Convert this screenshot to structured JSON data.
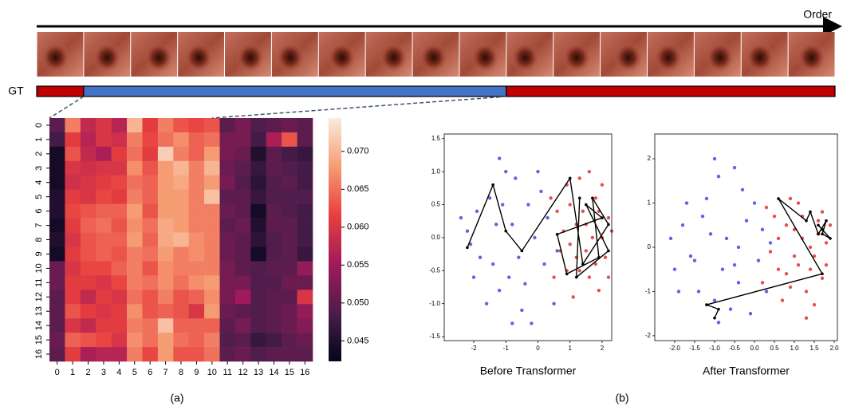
{
  "sequence": {
    "order_label": "Order",
    "gt_label": "GT",
    "gt_segments": [
      {
        "color": "#c00000",
        "start": 0,
        "end": 1
      },
      {
        "color": "#4472c4",
        "start": 1,
        "end": 10
      },
      {
        "color": "#c00000",
        "start": 10,
        "end": 17
      }
    ]
  },
  "chart_data": [
    {
      "type": "heatmap",
      "categories": [
        0,
        1,
        2,
        3,
        4,
        5,
        6,
        7,
        8,
        9,
        10,
        11,
        12,
        13,
        14,
        15,
        16
      ],
      "rows": [
        0,
        1,
        2,
        3,
        4,
        5,
        6,
        7,
        8,
        9,
        10,
        11,
        12,
        13,
        14,
        15,
        16
      ],
      "values": [
        [
          0.05,
          0.066,
          0.058,
          0.06,
          0.057,
          0.07,
          0.061,
          0.066,
          0.063,
          0.062,
          0.063,
          0.05,
          0.052,
          0.049,
          0.05,
          0.051,
          0.05
        ],
        [
          0.048,
          0.061,
          0.057,
          0.06,
          0.059,
          0.066,
          0.062,
          0.065,
          0.067,
          0.064,
          0.065,
          0.052,
          0.052,
          0.048,
          0.056,
          0.063,
          0.05
        ],
        [
          0.044,
          0.063,
          0.058,
          0.056,
          0.061,
          0.065,
          0.061,
          0.072,
          0.066,
          0.064,
          0.068,
          0.052,
          0.051,
          0.045,
          0.05,
          0.048,
          0.047
        ],
        [
          0.044,
          0.06,
          0.059,
          0.06,
          0.06,
          0.067,
          0.063,
          0.068,
          0.07,
          0.066,
          0.07,
          0.051,
          0.05,
          0.047,
          0.05,
          0.049,
          0.048
        ],
        [
          0.044,
          0.059,
          0.06,
          0.061,
          0.062,
          0.065,
          0.064,
          0.068,
          0.069,
          0.066,
          0.068,
          0.052,
          0.049,
          0.046,
          0.049,
          0.05,
          0.048
        ],
        [
          0.045,
          0.061,
          0.06,
          0.062,
          0.061,
          0.066,
          0.064,
          0.068,
          0.068,
          0.066,
          0.071,
          0.05,
          0.05,
          0.047,
          0.049,
          0.049,
          0.049
        ],
        [
          0.045,
          0.062,
          0.063,
          0.064,
          0.064,
          0.068,
          0.063,
          0.068,
          0.068,
          0.066,
          0.066,
          0.051,
          0.05,
          0.044,
          0.05,
          0.049,
          0.048
        ],
        [
          0.044,
          0.061,
          0.064,
          0.065,
          0.063,
          0.067,
          0.065,
          0.069,
          0.068,
          0.066,
          0.066,
          0.05,
          0.051,
          0.045,
          0.05,
          0.05,
          0.048
        ],
        [
          0.045,
          0.06,
          0.063,
          0.064,
          0.064,
          0.068,
          0.064,
          0.069,
          0.07,
          0.067,
          0.066,
          0.051,
          0.05,
          0.046,
          0.049,
          0.05,
          0.048
        ],
        [
          0.044,
          0.061,
          0.063,
          0.064,
          0.063,
          0.066,
          0.065,
          0.068,
          0.066,
          0.067,
          0.066,
          0.051,
          0.05,
          0.044,
          0.049,
          0.05,
          0.047
        ],
        [
          0.051,
          0.06,
          0.062,
          0.062,
          0.064,
          0.066,
          0.063,
          0.067,
          0.066,
          0.066,
          0.066,
          0.052,
          0.05,
          0.049,
          0.05,
          0.05,
          0.054
        ],
        [
          0.051,
          0.061,
          0.061,
          0.06,
          0.062,
          0.066,
          0.065,
          0.067,
          0.065,
          0.067,
          0.068,
          0.052,
          0.052,
          0.049,
          0.049,
          0.051,
          0.051
        ],
        [
          0.05,
          0.061,
          0.058,
          0.061,
          0.06,
          0.065,
          0.063,
          0.066,
          0.063,
          0.064,
          0.067,
          0.052,
          0.055,
          0.049,
          0.05,
          0.05,
          0.06
        ],
        [
          0.05,
          0.063,
          0.061,
          0.06,
          0.061,
          0.067,
          0.063,
          0.064,
          0.063,
          0.06,
          0.068,
          0.051,
          0.05,
          0.049,
          0.05,
          0.051,
          0.054
        ],
        [
          0.05,
          0.06,
          0.058,
          0.061,
          0.061,
          0.066,
          0.065,
          0.071,
          0.064,
          0.064,
          0.064,
          0.05,
          0.052,
          0.049,
          0.05,
          0.051,
          0.053
        ],
        [
          0.051,
          0.064,
          0.063,
          0.062,
          0.06,
          0.067,
          0.065,
          0.068,
          0.065,
          0.064,
          0.066,
          0.049,
          0.05,
          0.047,
          0.048,
          0.05,
          0.051
        ],
        [
          0.05,
          0.061,
          0.056,
          0.057,
          0.057,
          0.066,
          0.062,
          0.068,
          0.063,
          0.063,
          0.065,
          0.05,
          0.051,
          0.049,
          0.05,
          0.05,
          0.05
        ]
      ],
      "colormap": [
        "#03051a",
        "#4c1d4b",
        "#a11a5b",
        "#e83f3f",
        "#f69c73",
        "#faebdd"
      ],
      "clim": [
        0.0423,
        0.0744
      ],
      "cticks": [
        0.045,
        {
          "value": 0.05,
          "label": "0.050"
        },
        0.055,
        {
          "value": 0.06,
          "label": "0.060"
        },
        0.065,
        {
          "value": 0.07,
          "label": "0.070"
        }
      ]
    },
    {
      "type": "scatter",
      "title": "Before Transformer",
      "xlim": [
        -2.92,
        2.3
      ],
      "ylim": [
        -1.56,
        1.57
      ],
      "xticks": [
        -2,
        -1,
        0,
        1,
        2
      ],
      "yticks": [
        -1.5,
        {
          "value": -1,
          "label": "-1.0"
        },
        -0.5,
        {
          "value": 0,
          "label": "0.0"
        },
        0.5,
        {
          "value": 1,
          "label": "1.0"
        },
        1.5
      ],
      "series": [
        {
          "color": "#3b3be0",
          "x": [
            -2.2,
            -1.8,
            -1.5,
            -1.2,
            -0.8,
            -0.5,
            -1.0,
            -2.0,
            -0.3,
            0.2,
            -1.6,
            -0.6,
            -1.3,
            0.0,
            -0.9,
            -2.4,
            -0.4,
            0.3,
            -1.1,
            -0.7,
            -1.9,
            0.5,
            -0.2,
            -1.4,
            0.1,
            -0.8,
            -2.1,
            -0.1,
            0.6,
            -1.2
          ],
          "y": [
            0.1,
            -0.3,
            0.6,
            -0.8,
            0.2,
            -1.1,
            1.0,
            -0.6,
            0.5,
            -0.4,
            -1.0,
            -0.3,
            0.2,
            1.0,
            -0.6,
            0.3,
            -0.7,
            0.3,
            0.5,
            0.9,
            0.4,
            -1.0,
            -1.3,
            -0.4,
            0.7,
            -1.3,
            -0.1,
            0.0,
            -0.2,
            1.2
          ]
        },
        {
          "color": "#e02424",
          "x": [
            1.0,
            1.5,
            2.0,
            1.8,
            1.2,
            2.2,
            0.8,
            1.6,
            1.3,
            2.1,
            0.6,
            1.9,
            1.1,
            1.7,
            0.9,
            2.3,
            1.4,
            0.7,
            1.5,
            2.0,
            1.2,
            0.4,
            1.8,
            1.0,
            2.2,
            1.6,
            0.5,
            1.3,
            1.9,
            0.9
          ],
          "y": [
            0.5,
            0.2,
            0.0,
            0.6,
            -0.3,
            0.3,
            0.1,
            -0.6,
            0.9,
            -0.3,
            0.4,
            -0.8,
            -0.9,
            0.0,
            -0.5,
            0.1,
            0.4,
            -0.2,
            -0.2,
            0.8,
            0.2,
            0.6,
            -0.4,
            -0.1,
            -0.6,
            1.0,
            -0.6,
            -0.5,
            0.4,
            0.8
          ]
        }
      ],
      "path": {
        "color": "#000000",
        "x": [
          -2.2,
          -1.4,
          -1.0,
          -0.5,
          1.0,
          1.4,
          2.2,
          1.7,
          1.9,
          0.9,
          0.6,
          2.0,
          1.5,
          2.2,
          1.2,
          1.3
        ],
        "y": [
          -0.15,
          0.8,
          0.1,
          -0.2,
          0.9,
          -0.4,
          0.2,
          0.6,
          -0.3,
          -0.55,
          0.05,
          0.3,
          0.5,
          -0.2,
          -0.6,
          0.6
        ]
      }
    },
    {
      "type": "scatter",
      "title": "After Transformer",
      "xlim": [
        -2.5,
        2.08
      ],
      "ylim": [
        -2.11,
        2.56
      ],
      "xticks": [
        {
          "value": -2,
          "label": "-2.0"
        },
        -1.5,
        {
          "value": -1,
          "label": "-1.0"
        },
        -0.5,
        {
          "value": 0,
          "label": "0.0"
        },
        0.5,
        {
          "value": 1,
          "label": "1.0"
        },
        1.5,
        {
          "value": 2,
          "label": "2.0"
        }
      ],
      "yticks": [
        -2,
        -1,
        0,
        1,
        2
      ],
      "series": [
        {
          "color": "#3b3be0",
          "x": [
            -1.8,
            -1.5,
            -1.2,
            -1.0,
            -0.7,
            -0.4,
            -0.9,
            -2.0,
            -0.2,
            0.1,
            -1.4,
            -0.5,
            -1.1,
            -0.3,
            -0.8,
            -2.1,
            -0.6,
            0.2,
            -1.3,
            -0.5,
            -1.7,
            0.3,
            -0.1,
            -1.6,
            0.0,
            -0.9,
            -1.9,
            -0.4,
            0.4,
            -1.0
          ],
          "y": [
            0.5,
            -0.3,
            1.1,
            -1.2,
            0.2,
            -0.8,
            1.6,
            -0.5,
            0.6,
            -0.3,
            -1.0,
            -0.4,
            0.3,
            1.3,
            -0.5,
            0.2,
            -1.4,
            0.4,
            0.7,
            1.8,
            1.0,
            -1.0,
            -1.5,
            -0.2,
            1.0,
            -1.7,
            -1.0,
            0.0,
            0.1,
            2.0
          ]
        },
        {
          "color": "#e02424",
          "x": [
            0.8,
            1.2,
            1.6,
            1.4,
            1.0,
            1.8,
            0.6,
            1.3,
            1.1,
            1.7,
            0.5,
            1.5,
            0.9,
            1.6,
            0.7,
            1.9,
            1.2,
            0.4,
            1.4,
            1.8,
            1.0,
            0.3,
            1.5,
            0.8,
            1.3,
            0.9,
            0.6,
            1.7,
            1.1,
            0.2
          ],
          "y": [
            0.5,
            0.2,
            0.6,
            -0.5,
            -0.2,
            0.1,
            -0.5,
            -1.0,
            1.0,
            -0.7,
            0.7,
            -1.3,
            -0.9,
            0.3,
            -1.2,
            0.5,
            0.7,
            -0.1,
            0.0,
            -0.4,
            0.4,
            0.9,
            -0.2,
            -0.6,
            -1.6,
            1.1,
            0.2,
            0.8,
            -0.4,
            -0.8
          ]
        }
      ],
      "path": {
        "color": "#000000",
        "x": [
          -1.0,
          -0.9,
          -1.2,
          1.7,
          0.6,
          1.3,
          1.4,
          1.6,
          1.8,
          1.7,
          1.9,
          1.6,
          1.7
        ],
        "y": [
          -1.6,
          -1.4,
          -1.3,
          -0.6,
          1.1,
          0.6,
          0.8,
          0.3,
          0.6,
          0.3,
          0.2,
          0.5,
          0.4
        ]
      }
    }
  ],
  "captions": [
    "(a)",
    "(b)"
  ]
}
